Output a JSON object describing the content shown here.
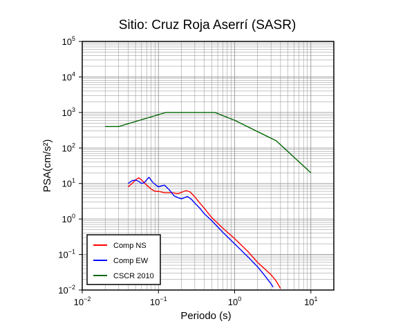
{
  "chart_data": {
    "type": "line",
    "title": "Sitio: Cruz Roja Aserrí (SASR)",
    "xlabel": "Periodo (s)",
    "ylabel": "PSA(cm/s²)",
    "x_scale": "log",
    "y_scale": "log",
    "xlim": [
      0.01,
      20
    ],
    "ylim": [
      0.01,
      100000
    ],
    "grid": true,
    "legend_position": "bottom-left",
    "x_ticks": [
      {
        "base": "10",
        "exp": "−2"
      },
      {
        "base": "10",
        "exp": "−1"
      },
      {
        "base": "10",
        "exp": "0"
      },
      {
        "base": "10",
        "exp": "1"
      }
    ],
    "y_ticks": [
      {
        "base": "10",
        "exp": "−2"
      },
      {
        "base": "10",
        "exp": "−1"
      },
      {
        "base": "10",
        "exp": "0"
      },
      {
        "base": "10",
        "exp": "1"
      },
      {
        "base": "10",
        "exp": "2"
      },
      {
        "base": "10",
        "exp": "3"
      },
      {
        "base": "10",
        "exp": "4"
      },
      {
        "base": "10",
        "exp": "5"
      }
    ],
    "series": [
      {
        "name": "Comp NS",
        "color": "#ff0000",
        "points": [
          [
            0.04,
            8.0
          ],
          [
            0.045,
            10.0
          ],
          [
            0.05,
            12.5
          ],
          [
            0.055,
            14.5
          ],
          [
            0.06,
            12.5
          ],
          [
            0.065,
            10.5
          ],
          [
            0.07,
            9.0
          ],
          [
            0.08,
            7.0
          ],
          [
            0.09,
            6.0
          ],
          [
            0.1,
            6.0
          ],
          [
            0.12,
            5.5
          ],
          [
            0.15,
            5.5
          ],
          [
            0.18,
            5.2
          ],
          [
            0.2,
            5.6
          ],
          [
            0.23,
            6.3
          ],
          [
            0.26,
            5.8
          ],
          [
            0.3,
            4.2
          ],
          [
            0.35,
            2.8
          ],
          [
            0.4,
            2.0
          ],
          [
            0.5,
            1.1
          ],
          [
            0.7,
            0.55
          ],
          [
            1.0,
            0.28
          ],
          [
            1.5,
            0.12
          ],
          [
            2.0,
            0.06
          ],
          [
            3.0,
            0.027
          ],
          [
            3.5,
            0.018
          ],
          [
            4.0,
            0.011
          ]
        ]
      },
      {
        "name": "Comp EW",
        "color": "#0000ff",
        "points": [
          [
            0.04,
            10.0
          ],
          [
            0.045,
            12.0
          ],
          [
            0.05,
            12.5
          ],
          [
            0.055,
            11.5
          ],
          [
            0.06,
            10.0
          ],
          [
            0.065,
            10.5
          ],
          [
            0.075,
            15.0
          ],
          [
            0.085,
            10.5
          ],
          [
            0.1,
            8.0
          ],
          [
            0.11,
            8.6
          ],
          [
            0.12,
            9.0
          ],
          [
            0.14,
            6.5
          ],
          [
            0.16,
            4.5
          ],
          [
            0.18,
            4.0
          ],
          [
            0.2,
            3.7
          ],
          [
            0.22,
            4.0
          ],
          [
            0.24,
            4.3
          ],
          [
            0.27,
            3.6
          ],
          [
            0.3,
            2.8
          ],
          [
            0.35,
            2.0
          ],
          [
            0.4,
            1.4
          ],
          [
            0.5,
            0.9
          ],
          [
            0.7,
            0.42
          ],
          [
            1.0,
            0.2
          ],
          [
            1.5,
            0.085
          ],
          [
            2.0,
            0.045
          ],
          [
            2.5,
            0.025
          ],
          [
            3.0,
            0.015
          ],
          [
            3.2,
            0.012
          ]
        ]
      },
      {
        "name": "CSCR 2010",
        "color": "#006400",
        "points": [
          [
            0.02,
            400
          ],
          [
            0.03,
            400
          ],
          [
            0.125,
            1000
          ],
          [
            0.55,
            1000
          ],
          [
            1.0,
            600
          ],
          [
            3.5,
            160
          ],
          [
            10.0,
            20
          ]
        ]
      }
    ]
  }
}
